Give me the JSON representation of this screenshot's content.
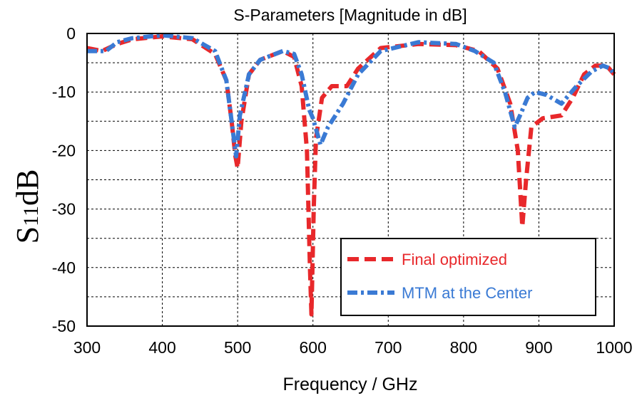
{
  "chart_data": {
    "type": "line",
    "title": "S-Parameters [Magnitude in dB]",
    "xlabel": "Frequency / GHz",
    "ylabel": {
      "main": "S",
      "sub": "11",
      "suffix": "dB"
    },
    "xlim": [
      300,
      1000
    ],
    "ylim": [
      -50,
      0
    ],
    "xticks": [
      300,
      400,
      500,
      600,
      700,
      800,
      900,
      1000
    ],
    "yticks": [
      0,
      -10,
      -20,
      -30,
      -40,
      -50
    ],
    "grid": true,
    "legend_position": "bottom-right",
    "series": [
      {
        "name": "Final optimized",
        "color": "#e8282b",
        "dash": "dashed",
        "points": [
          [
            300,
            -2.5
          ],
          [
            320,
            -3
          ],
          [
            340,
            -1.8
          ],
          [
            360,
            -1
          ],
          [
            400,
            -0.5
          ],
          [
            440,
            -1
          ],
          [
            470,
            -3.5
          ],
          [
            485,
            -8
          ],
          [
            492,
            -15
          ],
          [
            497,
            -21
          ],
          [
            500,
            -23
          ],
          [
            505,
            -15
          ],
          [
            515,
            -7
          ],
          [
            530,
            -4.5
          ],
          [
            560,
            -3
          ],
          [
            575,
            -4
          ],
          [
            585,
            -9
          ],
          [
            592,
            -20
          ],
          [
            596,
            -40
          ],
          [
            598,
            -48
          ],
          [
            601,
            -30
          ],
          [
            604,
            -18
          ],
          [
            612,
            -11
          ],
          [
            625,
            -9
          ],
          [
            645,
            -9
          ],
          [
            660,
            -6
          ],
          [
            690,
            -2.5
          ],
          [
            740,
            -1.8
          ],
          [
            790,
            -2
          ],
          [
            820,
            -3
          ],
          [
            845,
            -6
          ],
          [
            862,
            -12
          ],
          [
            872,
            -20
          ],
          [
            878,
            -33
          ],
          [
            883,
            -25
          ],
          [
            890,
            -16
          ],
          [
            905,
            -14.5
          ],
          [
            930,
            -14
          ],
          [
            945,
            -11
          ],
          [
            960,
            -7
          ],
          [
            975,
            -5.5
          ],
          [
            990,
            -5.5
          ],
          [
            1000,
            -7
          ]
        ]
      },
      {
        "name": "MTM at the Center",
        "color": "#3a7ad4",
        "dash": "dash-dot",
        "points": [
          [
            300,
            -3
          ],
          [
            325,
            -3
          ],
          [
            340,
            -1.5
          ],
          [
            360,
            -0.8
          ],
          [
            400,
            -0.3
          ],
          [
            440,
            -0.8
          ],
          [
            470,
            -3
          ],
          [
            485,
            -8
          ],
          [
            492,
            -15
          ],
          [
            498,
            -21
          ],
          [
            503,
            -14
          ],
          [
            515,
            -7
          ],
          [
            530,
            -4.5
          ],
          [
            560,
            -3
          ],
          [
            575,
            -3.5
          ],
          [
            585,
            -7
          ],
          [
            595,
            -13
          ],
          [
            600,
            -14.5
          ],
          [
            610,
            -19
          ],
          [
            620,
            -16
          ],
          [
            640,
            -12
          ],
          [
            660,
            -7
          ],
          [
            690,
            -3
          ],
          [
            740,
            -1.5
          ],
          [
            790,
            -1.8
          ],
          [
            815,
            -3
          ],
          [
            840,
            -5
          ],
          [
            855,
            -10
          ],
          [
            868,
            -16
          ],
          [
            875,
            -14
          ],
          [
            885,
            -11
          ],
          [
            895,
            -10
          ],
          [
            910,
            -10.5
          ],
          [
            930,
            -12
          ],
          [
            950,
            -9
          ],
          [
            970,
            -6.5
          ],
          [
            985,
            -5.5
          ],
          [
            995,
            -6
          ],
          [
            1000,
            -7
          ]
        ]
      }
    ]
  }
}
